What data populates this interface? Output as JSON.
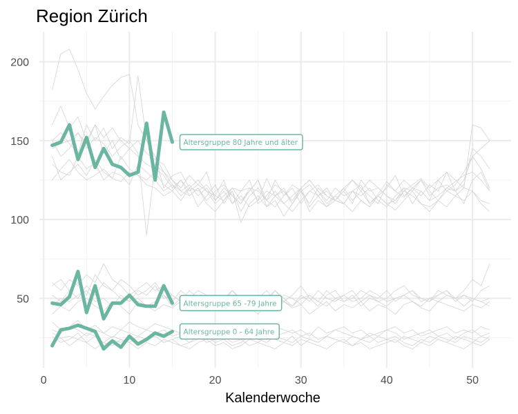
{
  "chart_data": {
    "type": "line",
    "title": "Region Zürich",
    "xlabel": "Kalenderwoche",
    "ylabel": "",
    "xlim": [
      -0.5,
      54.5
    ],
    "ylim": [
      6,
      219
    ],
    "xticks": [
      0,
      10,
      20,
      30,
      40,
      50
    ],
    "yticks": [
      50,
      100,
      150,
      200
    ],
    "grid": true,
    "colors": {
      "highlight": "#6bb6a3",
      "background": "#d3d3d3"
    },
    "highlight_series": [
      {
        "name": "Altersgruppe 80 Jahre und älter",
        "x": [
          1,
          2,
          3,
          4,
          5,
          6,
          7,
          8,
          9,
          10,
          11,
          12,
          13,
          14,
          15
        ],
        "values": [
          147,
          149,
          160,
          138,
          152,
          133,
          145,
          135,
          133,
          128,
          130,
          161,
          125,
          168,
          149
        ]
      },
      {
        "name": "Altersgruppe 65 -79 Jahre",
        "x": [
          1,
          2,
          3,
          4,
          5,
          6,
          7,
          8,
          9,
          10,
          11,
          12,
          13,
          14,
          15
        ],
        "values": [
          47,
          46,
          51,
          67,
          41,
          58,
          37,
          47,
          47,
          52,
          46,
          45,
          45,
          58,
          47
        ]
      },
      {
        "name": "Altersgruppe 0 - 64 Jahre",
        "x": [
          1,
          2,
          3,
          4,
          5,
          6,
          7,
          8,
          9,
          10,
          11,
          12,
          13,
          14,
          15
        ],
        "values": [
          20,
          30,
          31,
          33,
          31,
          29,
          18,
          23,
          19,
          26,
          21,
          24,
          28,
          26,
          29
        ]
      }
    ],
    "background_series": [
      {
        "values": [
          182,
          205,
          208,
          195,
          180,
          170,
          178,
          185,
          190,
          192,
          160,
          150,
          140,
          120,
          128,
          130,
          120,
          118,
          122,
          115,
          125,
          110,
          118,
          120,
          112,
          126,
          115,
          118,
          110,
          120,
          125,
          118,
          112,
          120,
          115,
          118,
          122,
          110,
          116,
          124,
          118,
          114,
          120,
          125,
          118,
          112,
          120,
          124,
          128,
          130,
          125,
          118
        ]
      },
      {
        "values": [
          160,
          172,
          158,
          165,
          150,
          160,
          152,
          158,
          150,
          145,
          140,
          135,
          132,
          128,
          120,
          125,
          118,
          122,
          130,
          112,
          120,
          115,
          110,
          118,
          125,
          112,
          108,
          115,
          122,
          118,
          110,
          120,
          115,
          112,
          118,
          125,
          120,
          115,
          110,
          122,
          118,
          125,
          120,
          115,
          122,
          118,
          130,
          125,
          120,
          160,
          158,
          150
        ]
      },
      {
        "values": [
          150,
          140,
          145,
          155,
          148,
          160,
          142,
          150,
          138,
          145,
          150,
          142,
          138,
          135,
          125,
          120,
          128,
          122,
          118,
          115,
          112,
          120,
          118,
          125,
          110,
          115,
          122,
          118,
          112,
          120,
          125,
          118,
          110,
          115,
          120,
          112,
          118,
          125,
          120,
          115,
          110,
          118,
          122,
          126,
          120,
          125,
          118,
          122,
          130,
          140,
          145,
          150
        ]
      },
      {
        "values": [
          140,
          125,
          130,
          135,
          128,
          138,
          130,
          126,
          140,
          132,
          128,
          125,
          130,
          122,
          118,
          125,
          115,
          120,
          112,
          118,
          122,
          115,
          110,
          120,
          118,
          112,
          125,
          115,
          120,
          110,
          118,
          122,
          115,
          112,
          120,
          125,
          118,
          110,
          115,
          120,
          128,
          115,
          120,
          118,
          112,
          125,
          130,
          118,
          122,
          145,
          140,
          132
        ]
      },
      {
        "values": [
          135,
          130,
          128,
          140,
          132,
          136,
          125,
          130,
          128,
          122,
          135,
          130,
          125,
          118,
          122,
          115,
          120,
          125,
          118,
          110,
          115,
          120,
          112,
          118,
          125,
          108,
          115,
          120,
          110,
          118,
          122,
          115,
          120,
          112,
          118,
          110,
          125,
          118,
          120,
          115,
          112,
          120,
          118,
          125,
          115,
          120,
          122,
          118,
          125,
          140,
          132,
          120
        ]
      },
      {
        "values": [
          125,
          132,
          138,
          130,
          125,
          128,
          132,
          126,
          124,
          130,
          128,
          122,
          120,
          115,
          118,
          112,
          120,
          108,
          115,
          122,
          110,
          118,
          105,
          115,
          120,
          112,
          118,
          110,
          115,
          120,
          108,
          115,
          118,
          112,
          110,
          118,
          115,
          120,
          112,
          108,
          115,
          120,
          110,
          118,
          112,
          115,
          120,
          118,
          110,
          125,
          130,
          118
        ]
      },
      {
        "values": [
          150,
          155,
          148,
          142,
          160,
          150,
          158,
          145,
          152,
          148,
          191,
          150,
          140,
          130,
          125,
          118,
          122,
          115,
          120,
          112,
          118,
          110,
          115,
          108,
          112,
          118,
          115,
          110,
          105,
          112,
          118,
          115,
          108,
          112,
          110,
          118,
          112,
          108,
          115,
          110,
          112,
          118,
          115,
          110,
          108,
          112,
          118,
          115,
          120,
          118,
          112,
          110
        ]
      },
      {
        "values": [
          145,
          148,
          150,
          155,
          145,
          152,
          148,
          140,
          146,
          150,
          142,
          90,
          135,
          130,
          122,
          118,
          115,
          120,
          110,
          105,
          112,
          118,
          98,
          110,
          115,
          108,
          112,
          102,
          110,
          118,
          105,
          112,
          108,
          115,
          110,
          105,
          112,
          108,
          115,
          110,
          106,
          112,
          118,
          110,
          105,
          112,
          108,
          115,
          112,
          118,
          110,
          105
        ]
      },
      {
        "values": [
          60,
          55,
          62,
          58,
          65,
          60,
          72,
          62,
          58,
          52,
          56,
          60,
          55,
          58,
          52,
          48,
          55,
          50,
          45,
          52,
          48,
          55,
          50,
          45,
          52,
          48,
          55,
          50,
          45,
          52,
          48,
          55,
          50,
          48,
          52,
          55,
          48,
          52,
          50,
          55,
          48,
          52,
          55,
          50,
          48,
          52,
          55,
          50,
          52,
          48,
          55,
          58
        ]
      },
      {
        "values": [
          58,
          62,
          55,
          60,
          52,
          65,
          58,
          55,
          62,
          58,
          52,
          55,
          60,
          52,
          48,
          55,
          50,
          52,
          48,
          45,
          50,
          55,
          48,
          52,
          45,
          50,
          55,
          48,
          52,
          58,
          50,
          45,
          52,
          55,
          48,
          50,
          55,
          52,
          48,
          50,
          55,
          58,
          52,
          50,
          48,
          55,
          52,
          50,
          55,
          62,
          58,
          72
        ]
      },
      {
        "values": [
          52,
          48,
          55,
          50,
          58,
          52,
          60,
          55,
          50,
          48,
          55,
          52,
          58,
          50,
          52,
          48,
          50,
          55,
          52,
          48,
          50,
          45,
          52,
          48,
          50,
          55,
          48,
          52,
          50,
          46,
          52,
          48,
          55,
          50,
          52,
          48,
          50,
          55,
          52,
          48,
          50,
          52,
          55,
          48,
          50,
          52,
          55,
          48,
          52,
          50,
          48,
          50
        ]
      },
      {
        "values": [
          45,
          50,
          48,
          52,
          55,
          48,
          50,
          45,
          52,
          48,
          50,
          45,
          48,
          52,
          45,
          50,
          48,
          45,
          50,
          52,
          48,
          45,
          50,
          48,
          52,
          45,
          50,
          48,
          45,
          50,
          52,
          48,
          45,
          50,
          48,
          52,
          45,
          50,
          48,
          45,
          50,
          52,
          48,
          45,
          50,
          48,
          52,
          50,
          45,
          50,
          48,
          45
        ]
      },
      {
        "values": [
          40,
          45,
          42,
          48,
          50,
          45,
          42,
          48,
          45,
          40,
          48,
          45,
          42,
          46,
          44,
          48,
          42,
          45,
          48,
          44,
          46,
          42,
          48,
          44,
          40,
          46,
          42,
          48,
          44,
          46,
          40,
          44,
          48,
          42,
          46,
          44,
          48,
          42,
          46,
          44,
          40,
          46,
          48,
          44,
          42,
          48,
          46,
          44,
          42,
          46,
          44,
          48
        ]
      },
      {
        "values": [
          35,
          30,
          32,
          36,
          30,
          33,
          28,
          32,
          30,
          35,
          32,
          30,
          34,
          32,
          30,
          28,
          32,
          30,
          28,
          26,
          30,
          32,
          28,
          30,
          26,
          28,
          32,
          30,
          28,
          30,
          26,
          32,
          28,
          30,
          32,
          28,
          30,
          26,
          28,
          30,
          32,
          28,
          30,
          26,
          28,
          30,
          32,
          28,
          30,
          28,
          32,
          30
        ]
      },
      {
        "values": [
          30,
          28,
          32,
          30,
          26,
          30,
          28,
          25,
          30,
          28,
          26,
          30,
          28,
          30,
          26,
          28,
          25,
          30,
          28,
          26,
          24,
          28,
          30,
          26,
          28,
          24,
          26,
          28,
          30,
          26,
          28,
          24,
          26,
          30,
          28,
          26,
          24,
          28,
          26,
          30,
          28,
          24,
          26,
          28,
          30,
          26,
          28,
          24,
          28,
          30,
          26,
          28
        ]
      },
      {
        "values": [
          28,
          25,
          26,
          24,
          28,
          26,
          22,
          26,
          24,
          22,
          26,
          24,
          26,
          22,
          24,
          26,
          22,
          24,
          26,
          22,
          24,
          20,
          22,
          26,
          24,
          22,
          26,
          24,
          22,
          26,
          24,
          22,
          26,
          24,
          22,
          26,
          24,
          22,
          26,
          24,
          22,
          26,
          24,
          22,
          26,
          24,
          22,
          26,
          24,
          22,
          26,
          24
        ]
      },
      {
        "values": [
          26,
          22,
          24,
          28,
          22,
          26,
          20,
          24,
          22,
          26,
          22,
          24,
          26,
          22,
          24,
          20,
          22,
          26,
          22,
          24,
          26,
          22,
          24,
          20,
          22,
          26,
          24,
          22,
          26,
          20,
          24,
          22,
          26,
          24,
          22,
          20,
          24,
          26,
          22,
          24,
          26,
          22,
          20,
          24,
          22,
          26,
          24,
          22,
          26,
          24,
          22,
          26
        ]
      },
      {
        "values": [
          22,
          25,
          20,
          24,
          22,
          18,
          22,
          20,
          24,
          22,
          18,
          22,
          20,
          24,
          22,
          20,
          18,
          22,
          24,
          20,
          22,
          18,
          20,
          24,
          22,
          20,
          18,
          22,
          20,
          24,
          22,
          20,
          18,
          22,
          24,
          20,
          22,
          18,
          20,
          22,
          24,
          20,
          18,
          22,
          20,
          24,
          22,
          20,
          18,
          22,
          20,
          24
        ]
      }
    ]
  }
}
